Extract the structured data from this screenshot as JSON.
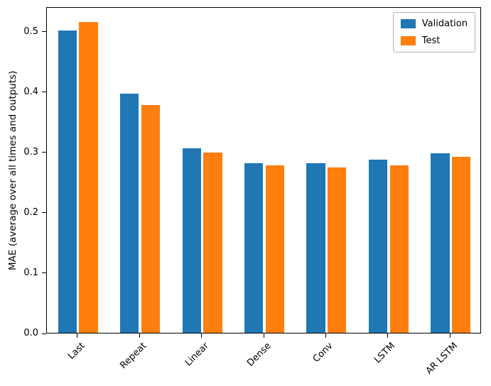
{
  "chart_data": {
    "type": "bar",
    "title": "",
    "xlabel": "",
    "ylabel": "MAE (average over all times and outputs)",
    "categories": [
      "Last",
      "Repeat",
      "Linear",
      "Dense",
      "Conv",
      "LSTM",
      "AR LSTM"
    ],
    "series": [
      {
        "name": "Validation",
        "color": "#1f77b4",
        "values": [
          0.501,
          0.396,
          0.306,
          0.281,
          0.281,
          0.287,
          0.298
        ]
      },
      {
        "name": "Test",
        "color": "#ff7f0e",
        "values": [
          0.515,
          0.377,
          0.299,
          0.277,
          0.274,
          0.277,
          0.292
        ]
      }
    ],
    "ylim": [
      0,
      0.541
    ],
    "yticks": [
      "0.0",
      "0.1",
      "0.2",
      "0.3",
      "0.4",
      "0.5"
    ],
    "grid": false,
    "legend_position": "upper right",
    "bar_group_width": 0.3,
    "bar_offsets": [
      -0.32,
      0.02
    ]
  }
}
